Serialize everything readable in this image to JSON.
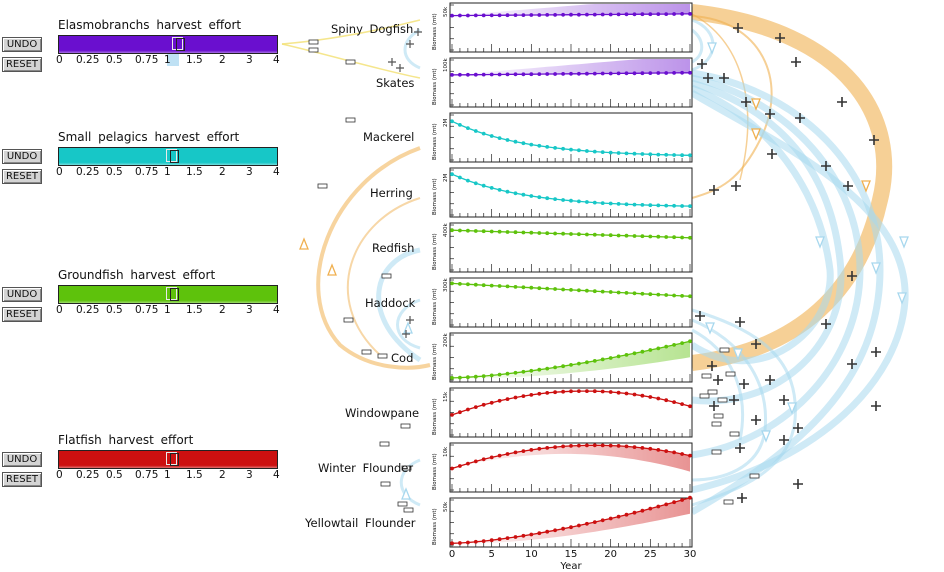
{
  "colors": {
    "elasmobranchs": "#6a0fcf",
    "small_pelagics": "#17c7c7",
    "groundfish": "#5ec20c",
    "flatfish": "#cc1010",
    "orange_link": "#f0b050",
    "blue_link": "#a8d8ee"
  },
  "controls": [
    {
      "id": "elasmobranchs",
      "title": "Elasmobranchs  harvest  effort",
      "undo": "UNDO",
      "reset": "RESET",
      "effort": 1.1,
      "color": "#6a0fcf"
    },
    {
      "id": "small_pelagics",
      "title": "Small  pelagics  harvest  effort",
      "undo": "UNDO",
      "reset": "RESET",
      "effort": 1.0,
      "color": "#17c7c7"
    },
    {
      "id": "groundfish",
      "title": "Groundfish  harvest  effort",
      "undo": "UNDO",
      "reset": "RESET",
      "effort": 1.0,
      "color": "#5ec20c"
    },
    {
      "id": "flatfish",
      "title": "Flatfish  harvest  effort",
      "undo": "UNDO",
      "reset": "RESET",
      "effort": 1.0,
      "color": "#cc1010"
    }
  ],
  "scale_labels": [
    "0",
    "0.25",
    "0.5",
    "0.75",
    "1",
    "1.5",
    "2",
    "3",
    "4"
  ],
  "species": [
    "Spiny  Dogfish",
    "Skates",
    "Mackerel",
    "Herring",
    "Redfish",
    "Haddock",
    "Cod",
    "Windowpane",
    "Winter  Flounder",
    "Yellowtail  Flounder"
  ],
  "chart_data": {
    "type": "line",
    "xlabel": "Year",
    "ylabel": "Biomass (mt)",
    "x_ticks": [
      0,
      5,
      10,
      15,
      20,
      25,
      30
    ],
    "panels": [
      {
        "name": "Spiny Dogfish",
        "group": "elasmobranchs",
        "color": "#6a0fcf",
        "ymax": "50k",
        "ylim": [
          0,
          50000
        ],
        "start": 40000,
        "end": 42000,
        "shape": "flat",
        "band": "up"
      },
      {
        "name": "Skates",
        "group": "elasmobranchs",
        "color": "#6a0fcf",
        "ymax": "100k",
        "ylim": [
          0,
          100000
        ],
        "start": 70000,
        "end": 75000,
        "shape": "flat",
        "band": "up"
      },
      {
        "name": "Mackerel",
        "group": "small_pelagics",
        "color": "#17c7c7",
        "ymax": "2M",
        "ylim": [
          0,
          2000000
        ],
        "start": 1800000,
        "end": 150000,
        "shape": "decay",
        "band": "none"
      },
      {
        "name": "Herring",
        "group": "small_pelagics",
        "color": "#17c7c7",
        "ymax": "2M",
        "ylim": [
          0,
          2000000
        ],
        "start": 1900000,
        "end": 350000,
        "shape": "decay",
        "band": "none"
      },
      {
        "name": "Redfish",
        "group": "groundfish",
        "color": "#5ec20c",
        "ymax": "400k",
        "ylim": [
          0,
          400000
        ],
        "start": 370000,
        "end": 300000,
        "shape": "linear",
        "band": "none"
      },
      {
        "name": "Haddock",
        "group": "groundfish",
        "color": "#5ec20c",
        "ymax": "300k",
        "ylim": [
          0,
          300000
        ],
        "start": 290000,
        "end": 200000,
        "shape": "linear",
        "band": "none"
      },
      {
        "name": "Cod",
        "group": "groundfish",
        "color": "#5ec20c",
        "ymax": "200k",
        "ylim": [
          0,
          200000
        ],
        "start": 10000,
        "end": 180000,
        "shape": "grow",
        "band": "down"
      },
      {
        "name": "Windowpane",
        "group": "flatfish",
        "color": "#cc1010",
        "ymax": "15k",
        "ylim": [
          0,
          15000
        ],
        "start": 7000,
        "end": 10000,
        "shape": "hump",
        "peak": 14500,
        "band": "none"
      },
      {
        "name": "Winter Flounder",
        "group": "flatfish",
        "color": "#cc1010",
        "ymax": "10k",
        "ylim": [
          0,
          10000
        ],
        "start": 5000,
        "end": 8000,
        "shape": "hump",
        "peak": 9500,
        "band": "down"
      },
      {
        "name": "Yellowtail Flounder",
        "group": "flatfish",
        "color": "#cc1010",
        "ymax": "50k",
        "ylim": [
          0,
          50000
        ],
        "start": 2000,
        "end": 55000,
        "shape": "grow",
        "band": "down"
      }
    ]
  }
}
